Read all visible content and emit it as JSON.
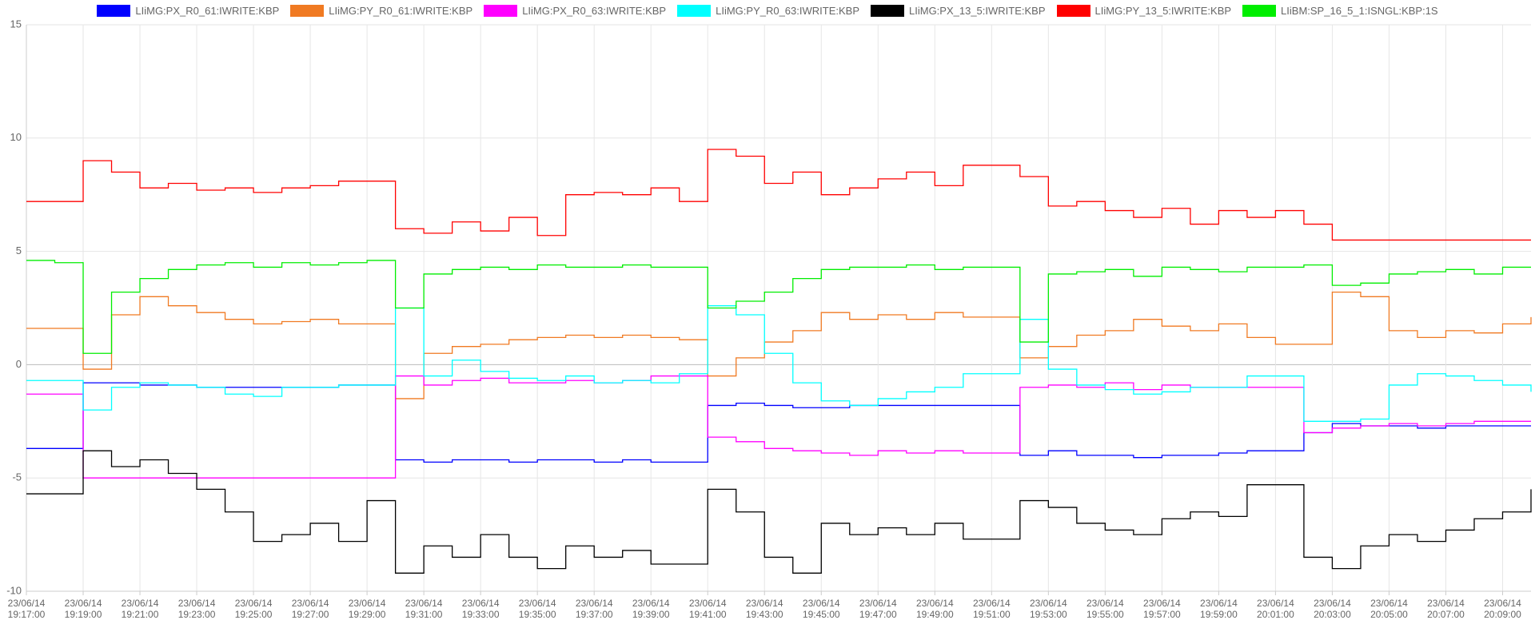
{
  "chart_data": {
    "type": "line",
    "step": true,
    "grid": true,
    "legend": "top",
    "x": [
      "23/06/14 19:17:00",
      "23/06/14 19:18:00",
      "23/06/14 19:19:00",
      "23/06/14 19:20:00",
      "23/06/14 19:21:00",
      "23/06/14 19:22:00",
      "23/06/14 19:23:00",
      "23/06/14 19:24:00",
      "23/06/14 19:25:00",
      "23/06/14 19:26:00",
      "23/06/14 19:27:00",
      "23/06/14 19:28:00",
      "23/06/14 19:29:00",
      "23/06/14 19:30:00",
      "23/06/14 19:31:00",
      "23/06/14 19:32:00",
      "23/06/14 19:33:00",
      "23/06/14 19:34:00",
      "23/06/14 19:35:00",
      "23/06/14 19:36:00",
      "23/06/14 19:37:00",
      "23/06/14 19:38:00",
      "23/06/14 19:39:00",
      "23/06/14 19:40:00",
      "23/06/14 19:41:00",
      "23/06/14 19:42:00",
      "23/06/14 19:43:00",
      "23/06/14 19:44:00",
      "23/06/14 19:45:00",
      "23/06/14 19:46:00",
      "23/06/14 19:47:00",
      "23/06/14 19:48:00",
      "23/06/14 19:49:00",
      "23/06/14 19:50:00",
      "23/06/14 19:51:00",
      "23/06/14 19:52:00",
      "23/06/14 19:53:00",
      "23/06/14 19:54:00",
      "23/06/14 19:55:00",
      "23/06/14 19:56:00",
      "23/06/14 19:57:00",
      "23/06/14 19:58:00",
      "23/06/14 19:59:00",
      "23/06/14 20:00:00",
      "23/06/14 20:01:00",
      "23/06/14 20:02:00",
      "23/06/14 20:03:00",
      "23/06/14 20:04:00",
      "23/06/14 20:05:00",
      "23/06/14 20:06:00",
      "23/06/14 20:07:00",
      "23/06/14 20:08:00",
      "23/06/14 20:09:00",
      "23/06/14 20:10:00"
    ],
    "xlim": [
      "23/06/14 19:17:00",
      "23/06/14 20:10:00"
    ],
    "xticks": [
      "23/06/14\n19:17:00",
      "23/06/14\n19:19:00",
      "23/06/14\n19:21:00",
      "23/06/14\n19:23:00",
      "23/06/14\n19:25:00",
      "23/06/14\n19:27:00",
      "23/06/14\n19:29:00",
      "23/06/14\n19:31:00",
      "23/06/14\n19:33:00",
      "23/06/14\n19:35:00",
      "23/06/14\n19:37:00",
      "23/06/14\n19:39:00",
      "23/06/14\n19:41:00",
      "23/06/14\n19:43:00",
      "23/06/14\n19:45:00",
      "23/06/14\n19:47:00",
      "23/06/14\n19:49:00",
      "23/06/14\n19:51:00",
      "23/06/14\n19:53:00",
      "23/06/14\n19:55:00",
      "23/06/14\n19:57:00",
      "23/06/14\n19:59:00",
      "23/06/14\n20:01:00",
      "23/06/14\n20:03:00",
      "23/06/14\n20:05:00",
      "23/06/14\n20:07:00",
      "23/06/14\n20:09:00"
    ],
    "ylim": [
      -10,
      15
    ],
    "yticks": [
      -10,
      -5,
      0,
      5,
      10,
      15
    ],
    "series": [
      {
        "name": "LIiMG:PX_R0_61:IWRITE:KBP",
        "color": "#0000ff",
        "values": [
          -3.7,
          -3.7,
          -0.8,
          -0.8,
          -0.9,
          -0.9,
          -1.0,
          -1.0,
          -1.0,
          -1.0,
          -1.0,
          -0.9,
          -0.9,
          -4.2,
          -4.3,
          -4.2,
          -4.2,
          -4.3,
          -4.2,
          -4.2,
          -4.3,
          -4.2,
          -4.3,
          -4.3,
          -1.8,
          -1.7,
          -1.8,
          -1.9,
          -1.9,
          -1.8,
          -1.8,
          -1.8,
          -1.8,
          -1.8,
          -1.8,
          -4.0,
          -3.8,
          -4.0,
          -4.0,
          -4.1,
          -4.0,
          -4.0,
          -3.9,
          -3.8,
          -3.8,
          -3.0,
          -2.6,
          -2.7,
          -2.7,
          -2.8,
          -2.7,
          -2.7,
          -2.7,
          -2.7
        ]
      },
      {
        "name": "LIiMG:PY_R0_61:IWRITE:KBP",
        "color": "#f07a22",
        "values": [
          1.6,
          1.6,
          -0.2,
          2.2,
          3.0,
          2.6,
          2.3,
          2.0,
          1.8,
          1.9,
          2.0,
          1.8,
          1.8,
          -1.5,
          0.5,
          0.8,
          0.9,
          1.1,
          1.2,
          1.3,
          1.2,
          1.3,
          1.2,
          1.1,
          -0.5,
          0.3,
          1.0,
          1.5,
          2.3,
          2.0,
          2.2,
          2.0,
          2.3,
          2.1,
          2.1,
          0.3,
          0.8,
          1.3,
          1.5,
          2.0,
          1.7,
          1.5,
          1.8,
          1.2,
          0.9,
          0.9,
          3.2,
          3.0,
          1.5,
          1.2,
          1.5,
          1.4,
          1.8,
          2.1
        ]
      },
      {
        "name": "LIiMG:PX_R0_63:IWRITE:KBP",
        "color": "#ff00ff",
        "values": [
          -1.3,
          -1.3,
          -5.0,
          -5.0,
          -5.0,
          -5.0,
          -5.0,
          -5.0,
          -5.0,
          -5.0,
          -5.0,
          -5.0,
          -5.0,
          -0.5,
          -0.9,
          -0.7,
          -0.6,
          -0.8,
          -0.8,
          -0.7,
          -0.8,
          -0.7,
          -0.5,
          -0.5,
          -3.2,
          -3.4,
          -3.7,
          -3.8,
          -3.9,
          -4.0,
          -3.8,
          -3.9,
          -3.8,
          -3.9,
          -3.9,
          -1.0,
          -0.9,
          -1.0,
          -0.8,
          -1.1,
          -0.9,
          -1.0,
          -1.0,
          -1.0,
          -1.0,
          -3.0,
          -2.8,
          -2.7,
          -2.6,
          -2.7,
          -2.6,
          -2.5,
          -2.5,
          -2.5
        ]
      },
      {
        "name": "LIiMG:PY_R0_63:IWRITE:KBP",
        "color": "#00ffff",
        "values": [
          -0.7,
          -0.7,
          -2.0,
          -1.0,
          -0.8,
          -0.9,
          -1.0,
          -1.3,
          -1.4,
          -1.0,
          -1.0,
          -0.9,
          -0.9,
          2.5,
          -0.5,
          0.2,
          -0.3,
          -0.6,
          -0.7,
          -0.5,
          -0.8,
          -0.7,
          -0.8,
          -0.4,
          2.6,
          2.2,
          0.5,
          -0.8,
          -1.6,
          -1.8,
          -1.5,
          -1.2,
          -1.0,
          -0.4,
          -0.4,
          2.0,
          -0.2,
          -0.9,
          -1.1,
          -1.3,
          -1.2,
          -1.0,
          -1.0,
          -0.5,
          -0.5,
          -2.5,
          -2.5,
          -2.4,
          -0.9,
          -0.4,
          -0.5,
          -0.7,
          -0.9,
          -1.2
        ]
      },
      {
        "name": "LIiMG:PX_13_5:IWRITE:KBP",
        "color": "#000000",
        "values": [
          -5.7,
          -5.7,
          -3.8,
          -4.5,
          -4.2,
          -4.8,
          -5.5,
          -6.5,
          -7.8,
          -7.5,
          -7.0,
          -7.8,
          -6.0,
          -9.2,
          -8.0,
          -8.5,
          -7.5,
          -8.5,
          -9.0,
          -8.0,
          -8.5,
          -8.2,
          -8.8,
          -8.8,
          -5.5,
          -6.5,
          -8.5,
          -9.2,
          -7.0,
          -7.5,
          -7.2,
          -7.5,
          -7.0,
          -7.7,
          -7.7,
          -6.0,
          -6.3,
          -7.0,
          -7.3,
          -7.5,
          -6.8,
          -6.5,
          -6.7,
          -5.3,
          -5.3,
          -8.5,
          -9.0,
          -8.0,
          -7.5,
          -7.8,
          -7.3,
          -6.8,
          -6.5,
          -5.5
        ]
      },
      {
        "name": "LIiMG:PY_13_5:IWRITE:KBP",
        "color": "#ff0000",
        "values": [
          7.2,
          7.2,
          9.0,
          8.5,
          7.8,
          8.0,
          7.7,
          7.8,
          7.6,
          7.8,
          7.9,
          8.1,
          8.1,
          6.0,
          5.8,
          6.3,
          5.9,
          6.5,
          5.7,
          7.5,
          7.6,
          7.5,
          7.8,
          7.2,
          9.5,
          9.2,
          8.0,
          8.5,
          7.5,
          7.8,
          8.2,
          8.5,
          7.9,
          8.8,
          8.8,
          8.3,
          7.0,
          7.2,
          6.8,
          6.5,
          6.9,
          6.2,
          6.8,
          6.5,
          6.8,
          6.2,
          5.5,
          5.5,
          5.5,
          5.5,
          5.5,
          5.5,
          5.5,
          5.5
        ]
      },
      {
        "name": "LIiBM:SP_16_5_1:ISNGL:KBP:1S",
        "color": "#00ee00",
        "values": [
          4.6,
          4.5,
          0.5,
          3.2,
          3.8,
          4.2,
          4.4,
          4.5,
          4.3,
          4.5,
          4.4,
          4.5,
          4.6,
          2.5,
          4.0,
          4.2,
          4.3,
          4.2,
          4.4,
          4.3,
          4.3,
          4.4,
          4.3,
          4.3,
          2.5,
          2.8,
          3.2,
          3.8,
          4.2,
          4.3,
          4.3,
          4.4,
          4.2,
          4.3,
          4.3,
          1.0,
          4.0,
          4.1,
          4.2,
          3.9,
          4.3,
          4.2,
          4.1,
          4.3,
          4.3,
          4.4,
          3.5,
          3.6,
          4.0,
          4.1,
          4.2,
          4.0,
          4.3,
          4.3
        ]
      }
    ]
  }
}
